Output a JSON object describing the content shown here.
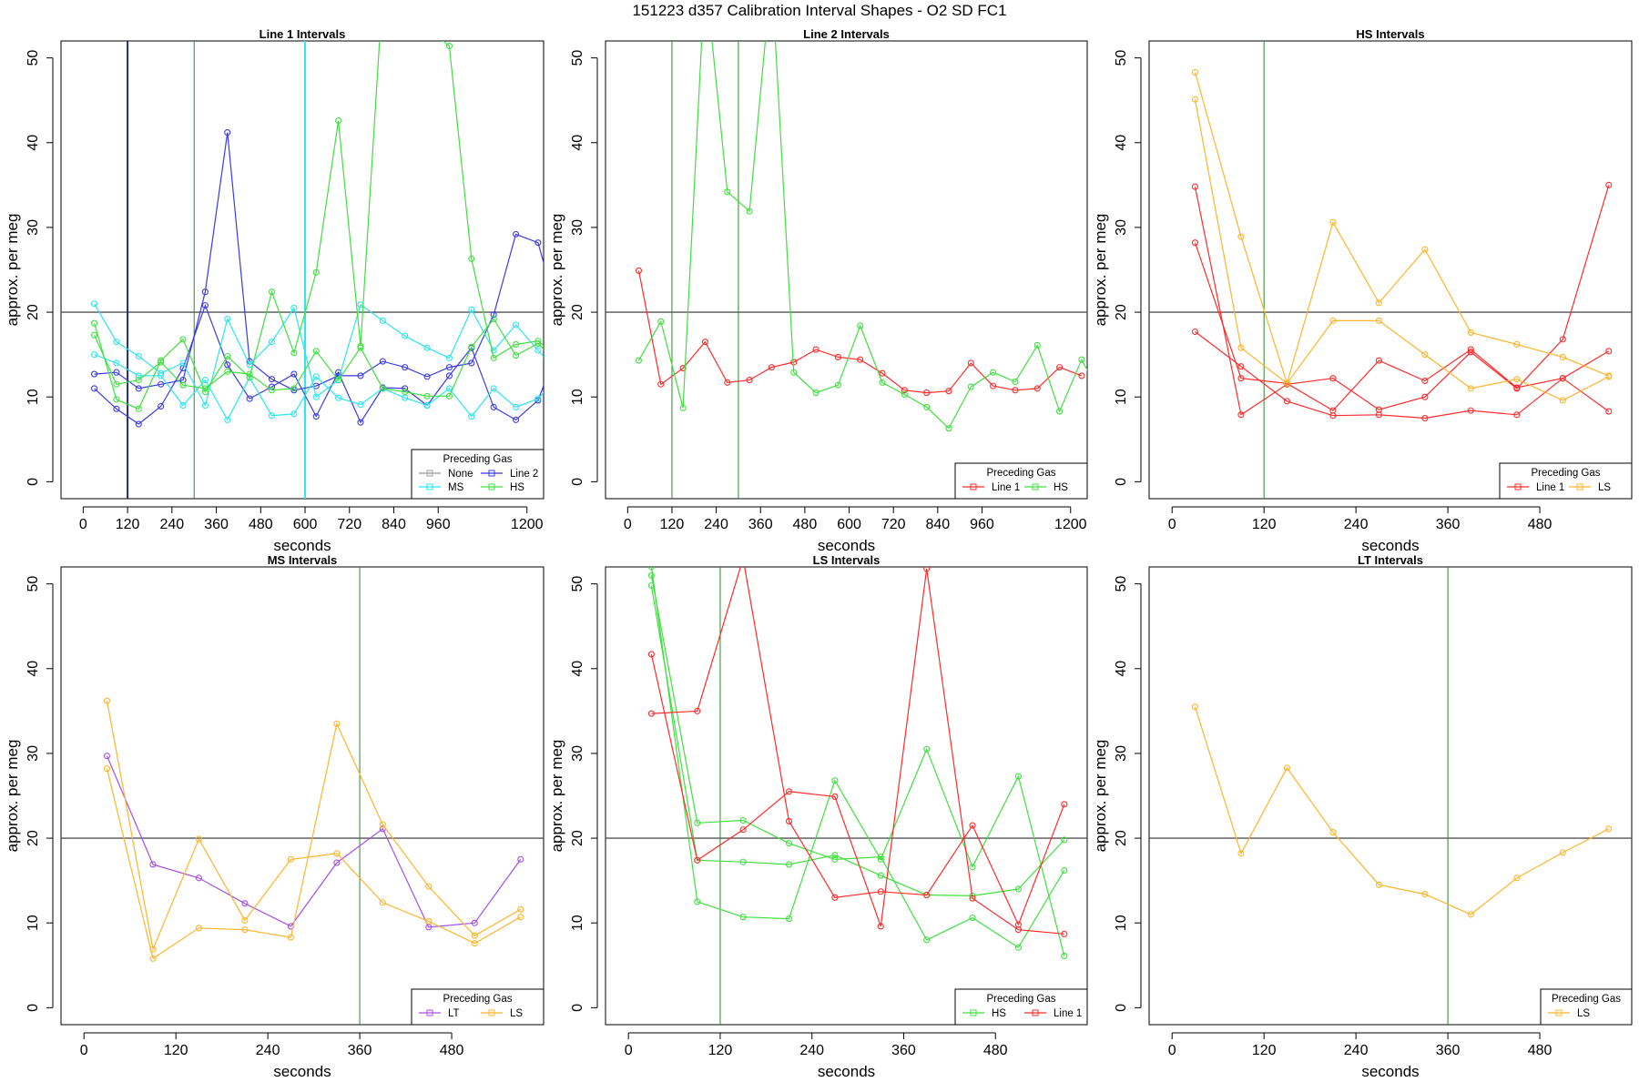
{
  "page": {
    "title": "151223   d357   Calibration Interval Shapes - O2 SD FC1"
  },
  "colors": {
    "None": "#999999",
    "Line 1": "#ff2a2a",
    "Line 2": "#3a3ae6",
    "MS": "#29e6f0",
    "HS": "#3fe03f",
    "LS": "#ffb52a",
    "LT": "#a64de6",
    "axis": "#000000",
    "refline": "#555555",
    "vline_green": "#2a8a2a",
    "vline_navy": "#1f2a7a",
    "vline_cyan": "#29e6f0"
  },
  "chart_data": [
    {
      "type": "line",
      "title": "Line 1 Intervals",
      "xlabel": "seconds",
      "ylabel": "approx. per meg",
      "xlim": [
        -60,
        1245
      ],
      "ylim": [
        -2,
        52
      ],
      "xticks": [
        0,
        120,
        240,
        360,
        480,
        600,
        720,
        840,
        960,
        1200
      ],
      "yticks": [
        0,
        10,
        20,
        30,
        40,
        50
      ],
      "hline": 20,
      "vlines": [
        {
          "x": 120,
          "color": "vline_navy",
          "width": 2
        },
        {
          "x": 300,
          "color": "vline_green",
          "width": 1
        },
        {
          "x": 600,
          "color": "vline_cyan",
          "width": 2
        }
      ],
      "legend": {
        "title": "Preceding Gas",
        "entries": [
          "None",
          "Line 2",
          "MS",
          "HS"
        ],
        "columns": 2,
        "position": "bottom-right"
      },
      "series": [
        {
          "name": "Line 2",
          "x": [
            30,
            90,
            150,
            210,
            270,
            330,
            390,
            450,
            510,
            570,
            630,
            690,
            750,
            810,
            870,
            930,
            990,
            1050,
            1110,
            1170,
            1230,
            1260
          ],
          "y": [
            12.7,
            12.9,
            11.0,
            11.5,
            12.0,
            22.4,
            41.2,
            14.2,
            12.1,
            10.8,
            11.3,
            12.5,
            12.5,
            14.2,
            13.5,
            12.4,
            13.5,
            14.0,
            19.7,
            29.2,
            28.2,
            23.5
          ]
        },
        {
          "name": "Line 2",
          "x": [
            30,
            90,
            150,
            210,
            270,
            330,
            390,
            450,
            510,
            570,
            630,
            690,
            750,
            810,
            870,
            930,
            990,
            1050,
            1110,
            1170,
            1230,
            1260
          ],
          "y": [
            11.0,
            8.6,
            6.8,
            8.9,
            13.4,
            20.8,
            13.8,
            9.8,
            11.2,
            12.7,
            7.7,
            12.9,
            7.0,
            11.1,
            11.0,
            9.0,
            12.5,
            15.8,
            8.8,
            7.3,
            9.6,
            13.0
          ]
        },
        {
          "name": "MS",
          "x": [
            30,
            90,
            150,
            210,
            270,
            330,
            390,
            450,
            510,
            570,
            630,
            690,
            750,
            810,
            870,
            930,
            990,
            1050,
            1110,
            1170,
            1230,
            1260
          ],
          "y": [
            21.0,
            16.5,
            14.8,
            12.8,
            14.0,
            9.0,
            19.2,
            13.8,
            16.5,
            20.5,
            10.0,
            12.0,
            20.9,
            19.0,
            17.2,
            15.8,
            14.6,
            20.3,
            15.5,
            18.5,
            15.5,
            14.0
          ]
        },
        {
          "name": "MS",
          "x": [
            30,
            90,
            150,
            210,
            270,
            330,
            390,
            450,
            510,
            570,
            630,
            690,
            750,
            810,
            870,
            930,
            990,
            1050,
            1110,
            1170,
            1230,
            1260
          ],
          "y": [
            15.0,
            14.0,
            12.5,
            12.5,
            9.0,
            12.0,
            7.3,
            12.3,
            7.8,
            8.0,
            12.4,
            9.9,
            9.1,
            11.0,
            9.9,
            9.0,
            11.0,
            7.7,
            11.0,
            8.8,
            9.8,
            11.2
          ]
        },
        {
          "name": "HS",
          "x": [
            30,
            90,
            150,
            210,
            270,
            330,
            390,
            450,
            510,
            570,
            630,
            690,
            750,
            810,
            990,
            1050,
            1110,
            1170,
            1230,
            1260
          ],
          "y": [
            18.7,
            9.7,
            8.6,
            14.3,
            16.8,
            10.6,
            14.8,
            12.3,
            22.4,
            15.2,
            24.7,
            42.6,
            16.0,
            58.0,
            51.4,
            26.3,
            14.6,
            16.2,
            16.6,
            15.5
          ]
        },
        {
          "name": "HS",
          "x": [
            30,
            90,
            150,
            210,
            270,
            330,
            390,
            450,
            510,
            570,
            630,
            690,
            750,
            810,
            870,
            930,
            990,
            1050,
            1110,
            1170,
            1230,
            1260
          ],
          "y": [
            17.3,
            11.5,
            12.0,
            14.1,
            11.4,
            11.0,
            13.0,
            12.7,
            10.8,
            11.0,
            15.4,
            12.0,
            15.8,
            11.0,
            10.6,
            10.1,
            10.1,
            15.9,
            19.2,
            14.9,
            16.3,
            15.0
          ]
        }
      ]
    },
    {
      "type": "line",
      "title": "Line 2 Intervals",
      "xlabel": "seconds",
      "ylabel": "approx. per meg",
      "xlim": [
        -60,
        1245
      ],
      "ylim": [
        -2,
        52
      ],
      "xticks": [
        0,
        120,
        240,
        360,
        480,
        600,
        720,
        840,
        960,
        1200
      ],
      "yticks": [
        0,
        10,
        20,
        30,
        40,
        50
      ],
      "hline": 20,
      "vlines": [
        {
          "x": 120,
          "color": "vline_green",
          "width": 1
        },
        {
          "x": 300,
          "color": "vline_green",
          "width": 1
        }
      ],
      "legend": {
        "title": "Preceding Gas",
        "entries": [
          "Line 1",
          "HS"
        ],
        "columns": 2,
        "position": "bottom-right"
      },
      "series": [
        {
          "name": "Line 1",
          "x": [
            30,
            90,
            150,
            210,
            270,
            330,
            390,
            450,
            510,
            570,
            630,
            690,
            750,
            810,
            870,
            930,
            990,
            1050,
            1110,
            1170,
            1230
          ],
          "y": [
            24.9,
            11.5,
            13.4,
            16.5,
            11.7,
            12.0,
            13.5,
            14.1,
            15.6,
            14.7,
            14.4,
            12.8,
            10.8,
            10.5,
            10.7,
            14.0,
            11.3,
            10.8,
            11.0,
            13.5,
            12.5
          ]
        },
        {
          "name": "HS",
          "x": [
            30,
            90,
            150,
            210,
            270,
            330,
            390,
            450,
            510,
            570,
            630,
            690,
            750,
            810,
            870,
            930,
            990,
            1050,
            1110,
            1170,
            1230,
            1260
          ],
          "y": [
            14.3,
            18.9,
            8.7,
            60.0,
            34.2,
            31.9,
            60.0,
            12.9,
            10.5,
            11.4,
            18.4,
            11.7,
            10.3,
            8.8,
            6.3,
            11.2,
            12.9,
            11.8,
            16.1,
            8.3,
            14.4,
            12.0
          ]
        }
      ]
    },
    {
      "type": "line",
      "title": "HS Intervals",
      "xlabel": "seconds",
      "ylabel": "approx. per meg",
      "xlim": [
        -30,
        600
      ],
      "ylim": [
        -2,
        52
      ],
      "xticks": [
        0,
        120,
        240,
        360,
        480
      ],
      "yticks": [
        0,
        10,
        20,
        30,
        40,
        50
      ],
      "hline": 20,
      "vlines": [
        {
          "x": 120,
          "color": "vline_green",
          "width": 1
        }
      ],
      "legend": {
        "title": "Preceding Gas",
        "entries": [
          "Line 1",
          "LS"
        ],
        "columns": 2,
        "position": "bottom-right"
      },
      "series": [
        {
          "name": "Line 1",
          "x": [
            30,
            90,
            150,
            210,
            270,
            330,
            390,
            450,
            510,
            570
          ],
          "y": [
            34.8,
            7.9,
            11.5,
            12.2,
            8.5,
            10.0,
            15.3,
            11.0,
            16.8,
            35.0
          ]
        },
        {
          "name": "Line 1",
          "x": [
            30,
            90,
            150,
            210,
            270,
            330,
            390,
            450,
            510,
            570
          ],
          "y": [
            28.2,
            12.2,
            11.6,
            8.4,
            14.3,
            11.9,
            15.6,
            11.1,
            12.2,
            15.4
          ]
        },
        {
          "name": "Line 1",
          "x": [
            30,
            90,
            150,
            210,
            270,
            330,
            390,
            450,
            510,
            570
          ],
          "y": [
            17.7,
            13.6,
            9.5,
            7.8,
            7.9,
            7.5,
            8.4,
            7.9,
            12.2,
            8.3
          ]
        },
        {
          "name": "LS",
          "x": [
            30,
            90,
            150,
            210,
            270,
            330,
            390,
            450,
            510,
            570
          ],
          "y": [
            48.3,
            28.9,
            11.6,
            30.6,
            21.1,
            27.4,
            17.6,
            16.2,
            14.7,
            12.5
          ]
        },
        {
          "name": "LS",
          "x": [
            30,
            90,
            150,
            210,
            270,
            330,
            390,
            450,
            510,
            570
          ],
          "y": [
            45.1,
            15.8,
            11.6,
            19.0,
            19.0,
            15.0,
            11.0,
            12.1,
            9.6,
            12.4
          ]
        }
      ]
    },
    {
      "type": "line",
      "title": "MS Intervals",
      "xlabel": "seconds",
      "ylabel": "approx. per meg",
      "xlim": [
        -30,
        600
      ],
      "ylim": [
        -2,
        52
      ],
      "xticks": [
        0,
        120,
        240,
        360,
        480
      ],
      "yticks": [
        0,
        10,
        20,
        30,
        40,
        50
      ],
      "hline": 20,
      "vlines": [
        {
          "x": 360,
          "color": "vline_green",
          "width": 1
        }
      ],
      "legend": {
        "title": "Preceding Gas",
        "entries": [
          "LT",
          "LS"
        ],
        "columns": 2,
        "position": "bottom-right"
      },
      "series": [
        {
          "name": "LT",
          "x": [
            30,
            90,
            150,
            210,
            270,
            330,
            390,
            450,
            510,
            570
          ],
          "y": [
            29.7,
            16.9,
            15.3,
            12.3,
            9.6,
            17.1,
            21.1,
            9.5,
            10.0,
            17.5
          ]
        },
        {
          "name": "LS",
          "x": [
            30,
            90,
            150,
            210,
            270,
            330,
            390,
            450,
            510,
            570
          ],
          "y": [
            36.2,
            6.9,
            19.9,
            10.3,
            17.5,
            18.2,
            12.4,
            10.2,
            7.6,
            10.7
          ]
        },
        {
          "name": "LS",
          "x": [
            30,
            90,
            150,
            210,
            270,
            330,
            390,
            450,
            510,
            570
          ],
          "y": [
            28.2,
            5.8,
            9.4,
            9.2,
            8.3,
            33.5,
            21.6,
            14.3,
            8.5,
            11.6
          ]
        }
      ]
    },
    {
      "type": "line",
      "title": "LS Intervals",
      "xlabel": "seconds",
      "ylabel": "approx. per meg",
      "xlim": [
        -30,
        600
      ],
      "ylim": [
        -2,
        52
      ],
      "xticks": [
        0,
        120,
        240,
        360,
        480
      ],
      "yticks": [
        0,
        10,
        20,
        30,
        40,
        50
      ],
      "hline": 20,
      "vlines": [
        {
          "x": 120,
          "color": "vline_green",
          "width": 1
        }
      ],
      "legend": {
        "title": "Preceding Gas",
        "entries": [
          "HS",
          "Line 1"
        ],
        "columns": 2,
        "position": "bottom-right"
      },
      "series": [
        {
          "name": "HS",
          "x": [
            30,
            90,
            150,
            210,
            270,
            330,
            390,
            450,
            510,
            570
          ],
          "y": [
            51.0,
            21.8,
            22.1,
            19.4,
            17.5,
            17.8,
            8.0,
            10.6,
            7.1,
            16.2
          ]
        },
        {
          "name": "HS",
          "x": [
            30,
            90,
            150,
            210,
            270,
            330,
            390,
            450,
            510,
            570
          ],
          "y": [
            49.8,
            17.4,
            17.2,
            16.9,
            18.0,
            15.6,
            13.3,
            13.2,
            14.0,
            19.8
          ]
        },
        {
          "name": "HS",
          "x": [
            30,
            90,
            150,
            210,
            270,
            330,
            390,
            450,
            510,
            570
          ],
          "y": [
            52.0,
            12.5,
            10.7,
            10.5,
            26.8,
            17.5,
            30.5,
            16.6,
            27.3,
            6.1
          ]
        },
        {
          "name": "Line 1",
          "x": [
            30,
            90,
            150,
            210,
            270,
            330,
            390,
            450,
            510,
            570
          ],
          "y": [
            41.7,
            17.4,
            21.0,
            25.5,
            24.9,
            9.6,
            51.8,
            12.9,
            9.2,
            8.7
          ]
        },
        {
          "name": "Line 1",
          "x": [
            30,
            90,
            150,
            210,
            270,
            330,
            390,
            450,
            510,
            570
          ],
          "y": [
            34.7,
            35.0,
            53.0,
            22.0,
            13.0,
            13.7,
            13.3,
            21.5,
            9.8,
            24.0
          ]
        }
      ]
    },
    {
      "type": "line",
      "title": "LT Intervals",
      "xlabel": "seconds",
      "ylabel": "approx. per meg",
      "xlim": [
        -30,
        600
      ],
      "ylim": [
        -2,
        52
      ],
      "xticks": [
        0,
        120,
        240,
        360,
        480
      ],
      "yticks": [
        0,
        10,
        20,
        30,
        40,
        50
      ],
      "hline": 20,
      "vlines": [
        {
          "x": 360,
          "color": "vline_green",
          "width": 1
        }
      ],
      "legend": {
        "title": "Preceding Gas",
        "entries": [
          "LS"
        ],
        "columns": 1,
        "position": "bottom-right"
      },
      "series": [
        {
          "name": "LS",
          "x": [
            30,
            90,
            150,
            210,
            270,
            330,
            390,
            450,
            510,
            570
          ],
          "y": [
            35.5,
            18.2,
            28.3,
            20.7,
            14.5,
            13.4,
            11.0,
            15.3,
            18.3,
            21.1
          ]
        }
      ]
    }
  ]
}
